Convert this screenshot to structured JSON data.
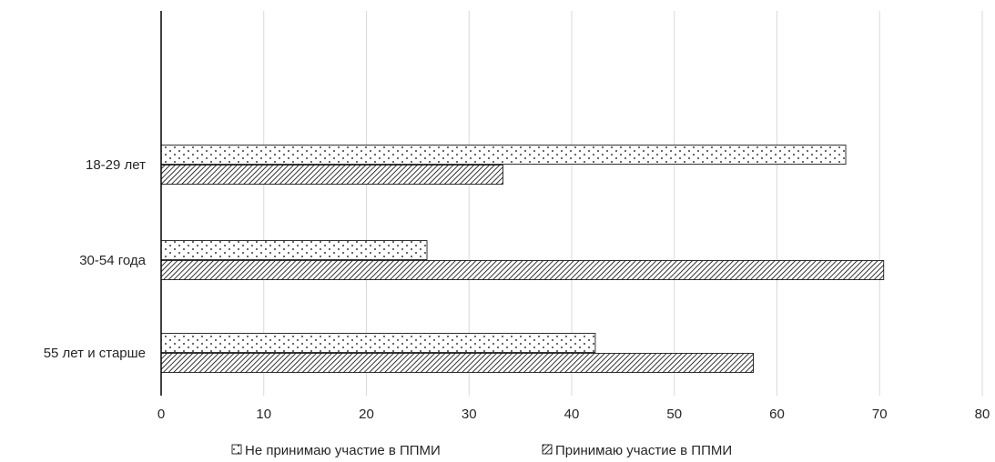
{
  "chart_data": {
    "type": "bar",
    "orientation": "horizontal",
    "title": "",
    "xlabel": "",
    "ylabel": "",
    "categories": [
      "18-29 лет",
      "30-54 года",
      "55 лет и старше"
    ],
    "series": [
      {
        "name": "Не принимаю участие в ППМИ",
        "pattern": "dots",
        "values": [
          66.7,
          25.9,
          42.3
        ]
      },
      {
        "name": "Принимаю участие в ППМИ",
        "pattern": "diagonal-hatch",
        "values": [
          33.3,
          70.4,
          57.7
        ]
      }
    ],
    "xlim": [
      0,
      80
    ],
    "xticks": [
      0,
      10,
      20,
      30,
      40,
      50,
      60,
      70,
      80
    ],
    "grid": true,
    "legend_position": "bottom",
    "colors": {
      "bar_stroke": "#000000",
      "grid": "#d9d9d9",
      "text": "#262626"
    }
  }
}
